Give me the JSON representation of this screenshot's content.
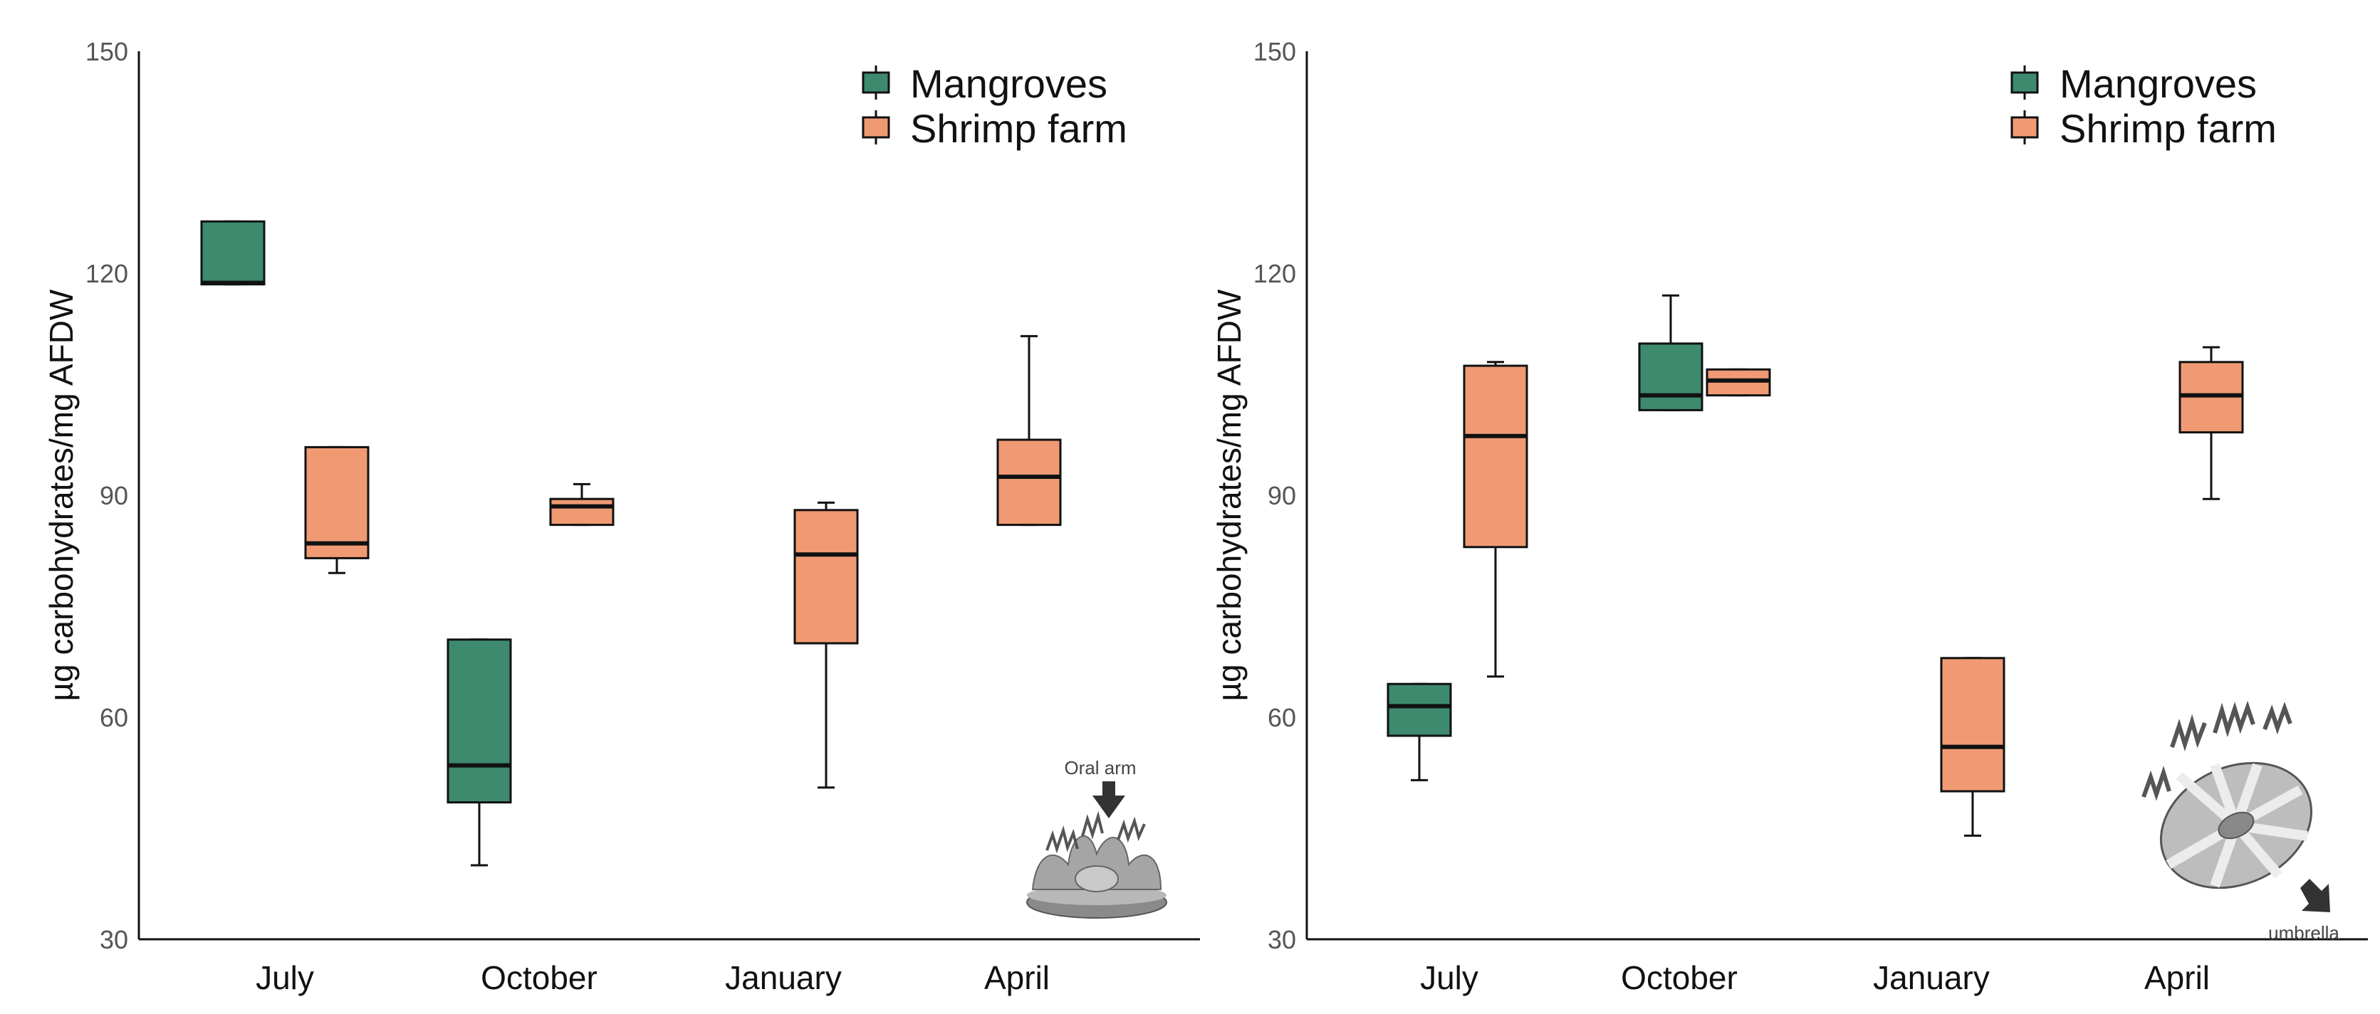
{
  "chart_data": [
    {
      "type": "boxplot",
      "panel": "left",
      "ylabel": "µg carbohydrates/mg AFDW",
      "xlabel": "",
      "ylim": [
        30,
        150
      ],
      "yticks": [
        30,
        60,
        90,
        120,
        150
      ],
      "categories": [
        "July",
        "October",
        "January",
        "April"
      ],
      "legend": {
        "position": "top-right",
        "entries": [
          "Mangroves",
          "Shrimp farm"
        ]
      },
      "annotation": "Oral arm",
      "series": [
        {
          "name": "Mangroves",
          "color": "#3d8a6e",
          "boxes": [
            {
              "category": "July",
              "min": 118.5,
              "q1": 118.5,
              "median": 118.7,
              "q3": 127,
              "max": 127
            },
            {
              "category": "October",
              "min": 40,
              "q1": 48.5,
              "median": 53.5,
              "q3": 70.5,
              "max": 70.5
            },
            null,
            null
          ]
        },
        {
          "name": "Shrimp farm",
          "color": "#f09a74",
          "boxes": [
            {
              "category": "July",
              "min": 79.5,
              "q1": 81.5,
              "median": 83.5,
              "q3": 96.5,
              "max": 96.5
            },
            {
              "category": "October",
              "min": 86,
              "q1": 86,
              "median": 88.5,
              "q3": 89.5,
              "max": 91.5
            },
            {
              "category": "January",
              "min": 50.5,
              "q1": 70,
              "median": 82,
              "q3": 88,
              "max": 89
            },
            {
              "category": "April",
              "min": 86,
              "q1": 86,
              "median": 92.5,
              "q3": 97.5,
              "max": 111.5
            }
          ]
        }
      ]
    },
    {
      "type": "boxplot",
      "panel": "right",
      "ylabel": "µg carbohydrates/mg AFDW",
      "xlabel": "",
      "ylim": [
        30,
        150
      ],
      "yticks": [
        30,
        60,
        90,
        120,
        150
      ],
      "categories": [
        "July",
        "October",
        "January",
        "April"
      ],
      "legend": {
        "position": "top-right",
        "entries": [
          "Mangroves",
          "Shrimp farm"
        ]
      },
      "annotation": "umbrella",
      "series": [
        {
          "name": "Mangroves",
          "color": "#3d8a6e",
          "boxes": [
            {
              "category": "July",
              "min": 51.5,
              "q1": 57.5,
              "median": 61.5,
              "q3": 64.5,
              "max": 64.5
            },
            {
              "category": "October",
              "min": 101.5,
              "q1": 101.5,
              "median": 103.5,
              "q3": 110.5,
              "max": 117
            },
            null,
            null
          ]
        },
        {
          "name": "Shrimp farm",
          "color": "#f09a74",
          "boxes": [
            {
              "category": "July",
              "min": 65.5,
              "q1": 83,
              "median": 98,
              "q3": 107.5,
              "max": 108
            },
            {
              "category": "October",
              "min": 103.5,
              "q1": 103.5,
              "median": 105.5,
              "q3": 107,
              "max": 107
            },
            {
              "category": "January",
              "min": 44,
              "q1": 50,
              "median": 56,
              "q3": 68,
              "max": 68
            },
            {
              "category": "April",
              "min": 89.5,
              "q1": 98.5,
              "median": 103.5,
              "q3": 108,
              "max": 110
            }
          ]
        }
      ]
    }
  ]
}
